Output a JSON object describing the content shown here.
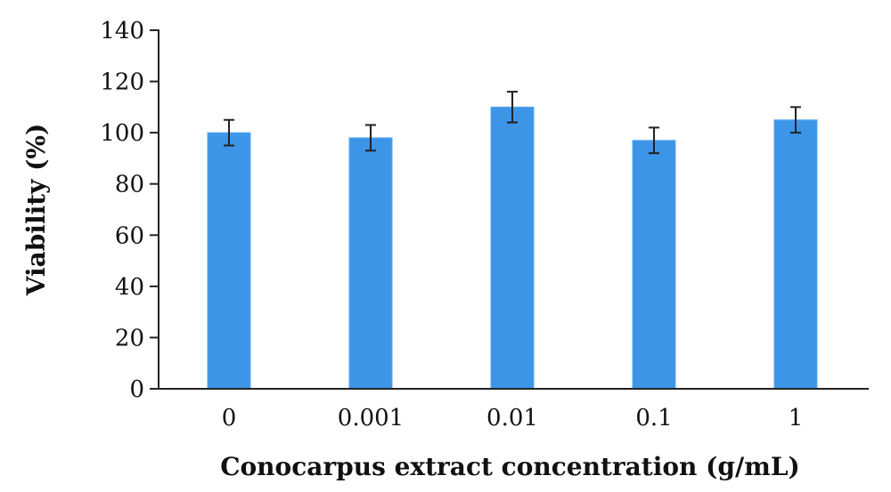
{
  "chart_data": {
    "type": "bar",
    "title": "",
    "xlabel": "Conocarpus extract concentration (g/mL)",
    "ylabel": "Viability (%)",
    "categories": [
      "0",
      "0.001",
      "0.01",
      "0.1",
      "1"
    ],
    "values": [
      100,
      98,
      110,
      97,
      105
    ],
    "error": [
      5,
      5,
      6,
      5,
      5
    ],
    "ylim": [
      0,
      140
    ],
    "yticks": [
      "0",
      "20",
      "40",
      "60",
      "80",
      "100",
      "120",
      "140"
    ],
    "grid": false,
    "legend": "none",
    "bar_color": "#3d95e8"
  }
}
